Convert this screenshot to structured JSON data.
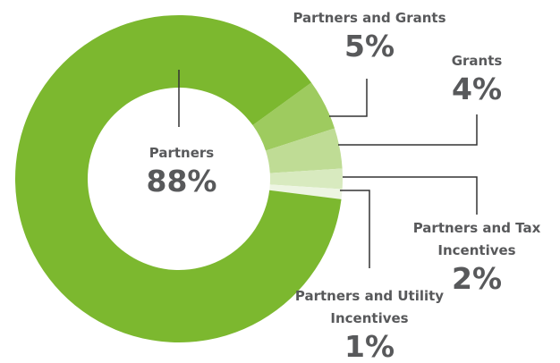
{
  "chart_data": {
    "type": "donut",
    "categories": [
      "Partners and Grants",
      "Grants",
      "Partners and Tax Incentives",
      "Partners and Utility Incentives",
      "Partners"
    ],
    "values": [
      5,
      4,
      2,
      1,
      88
    ],
    "value_labels": [
      "5%",
      "4%",
      "2%",
      "1%",
      "88%"
    ],
    "colors": [
      "#9ecb5f",
      "#bfdc95",
      "#d8eabf",
      "#edf5e2",
      "#7cb82f"
    ]
  }
}
